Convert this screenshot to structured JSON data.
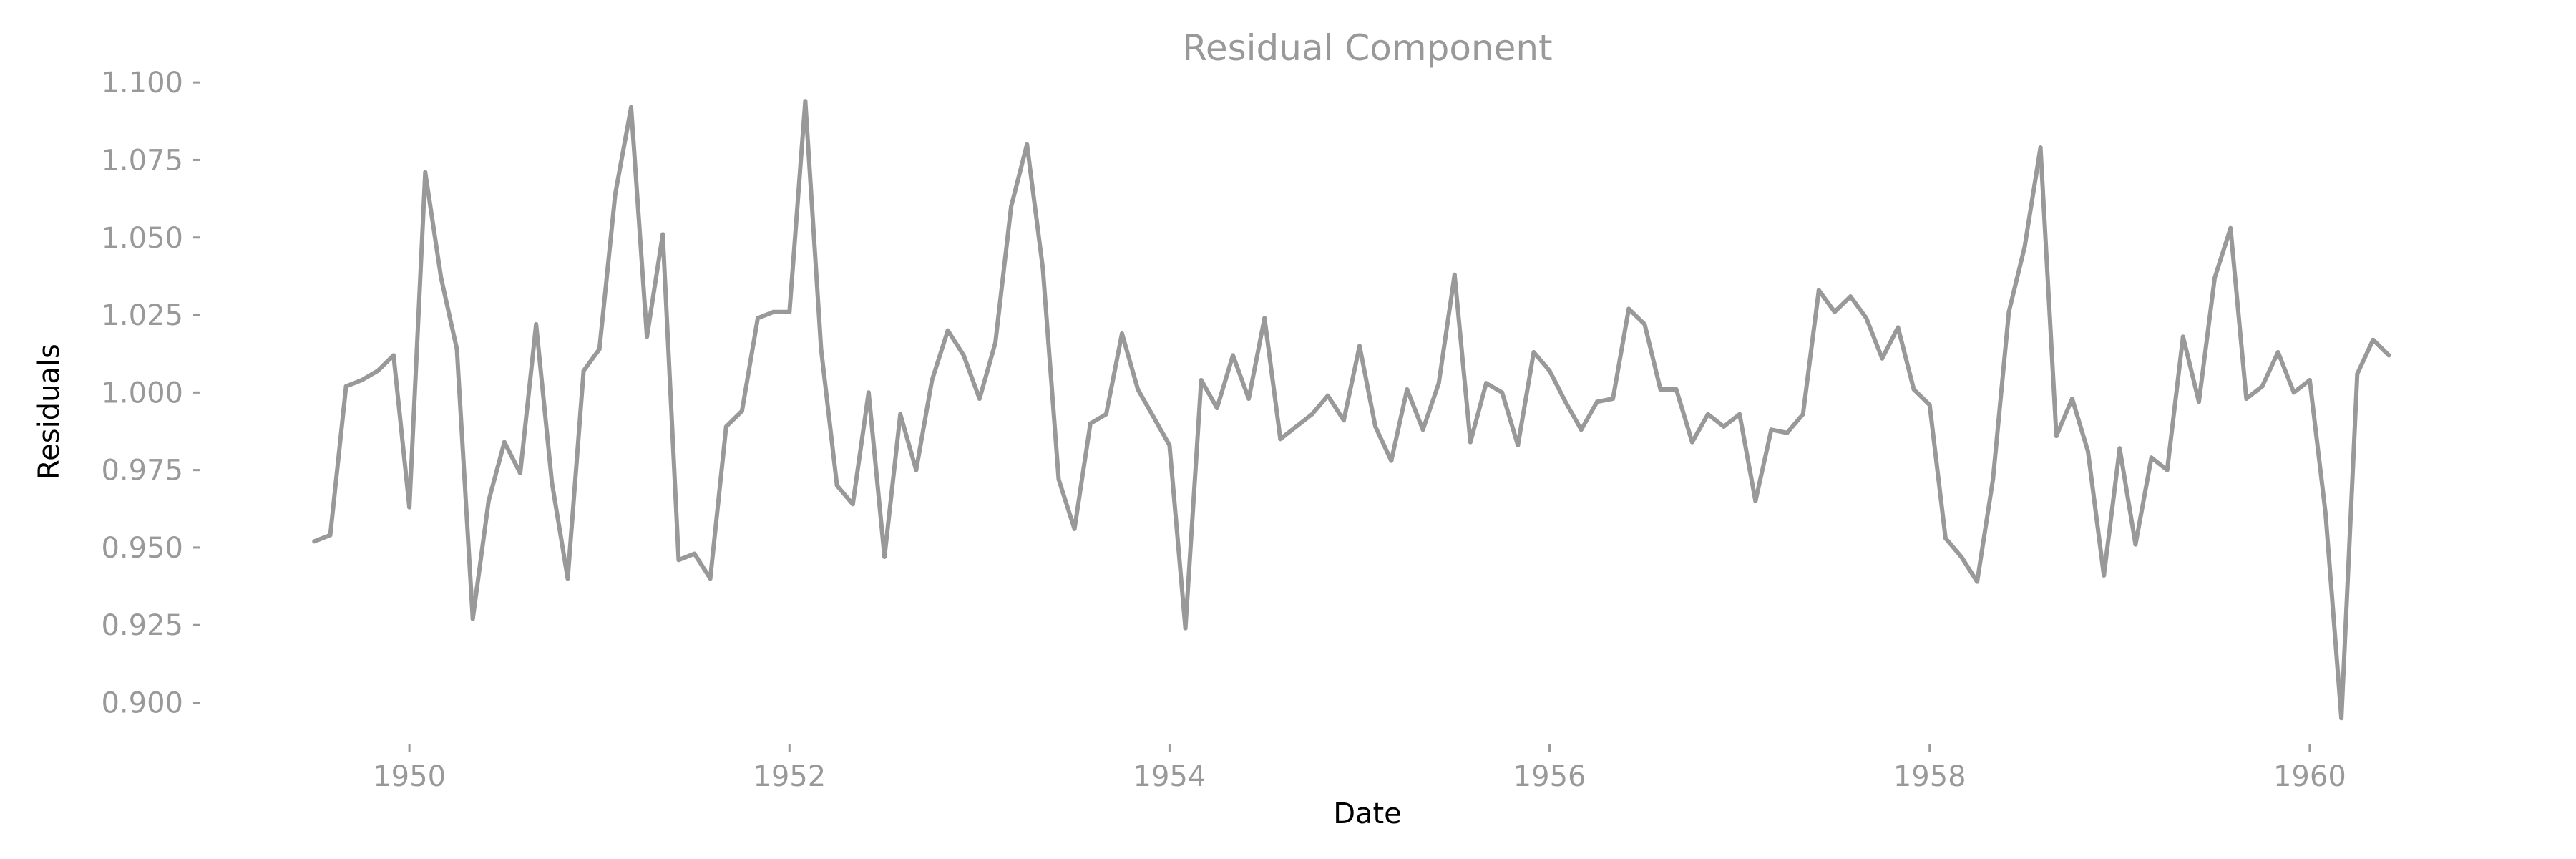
{
  "chart_data": {
    "type": "line",
    "title": "Residual Component",
    "xlabel": "Date",
    "ylabel": "Residuals",
    "xlim": [
      1948.9,
      1961.1
    ],
    "ylim": [
      0.8865,
      1.1035
    ],
    "x_ticks": [
      1950,
      1952,
      1954,
      1956,
      1958,
      1960
    ],
    "y_ticks": [
      "0.900",
      "0.925",
      "0.950",
      "0.975",
      "1.000",
      "1.025",
      "1.050",
      "1.075",
      "1.100"
    ],
    "grid": false,
    "line_color": "#999999",
    "series": [
      {
        "start": "1949-07",
        "values": [
          0.952,
          0.954,
          1.002,
          1.004,
          1.007,
          1.012,
          0.963,
          1.071,
          1.037,
          1.014,
          0.927,
          0.965,
          0.984,
          0.974,
          1.022,
          0.971,
          0.94,
          1.007,
          1.014,
          1.064,
          1.092,
          1.018,
          1.051,
          0.946,
          0.948,
          0.94,
          0.989,
          0.994,
          1.024,
          1.026,
          1.026,
          1.094,
          1.014,
          0.97,
          0.964,
          1.0,
          0.947,
          0.993,
          0.975,
          1.004,
          1.02,
          1.012,
          0.998,
          1.016,
          1.06,
          1.08,
          1.04,
          0.972,
          0.956,
          0.99,
          0.993,
          1.019,
          1.001,
          0.992,
          0.983,
          0.924,
          1.004,
          0.995,
          1.012,
          0.998,
          1.024,
          0.985,
          0.989,
          0.993,
          0.999,
          0.991,
          1.015,
          0.989,
          0.978,
          1.001,
          0.988,
          1.003,
          1.038,
          0.984,
          1.003,
          1.0,
          0.983,
          1.013,
          1.007,
          0.997,
          0.988,
          0.997,
          0.998,
          1.027,
          1.022,
          1.001,
          1.001,
          0.984,
          0.993,
          0.989,
          0.993,
          0.965,
          0.988,
          0.987,
          0.993,
          1.033,
          1.026,
          1.031,
          1.024,
          1.011,
          1.021,
          1.001,
          0.996,
          0.953,
          0.947,
          0.939,
          0.972,
          1.026,
          1.047,
          1.079,
          0.986,
          0.998,
          0.981,
          0.941,
          0.982,
          0.951,
          0.979,
          0.975,
          1.018,
          0.997,
          1.037,
          1.053,
          0.998,
          1.002,
          1.013,
          1.0,
          1.004,
          0.961,
          0.895,
          1.006,
          1.017,
          1.012
        ]
      }
    ]
  }
}
